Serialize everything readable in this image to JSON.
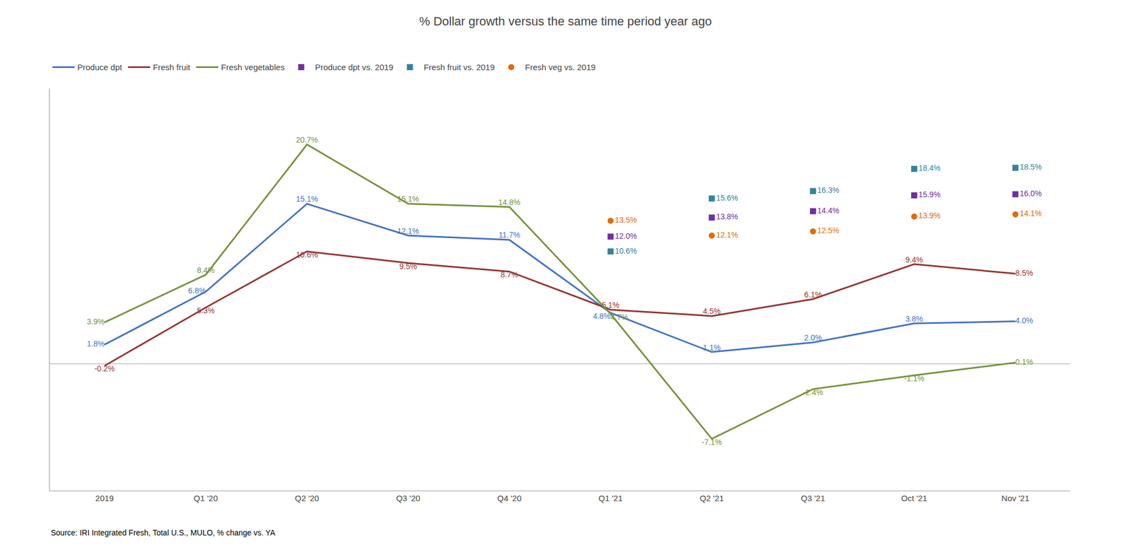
{
  "chart_data": {
    "type": "line",
    "title": "% Dollar growth versus the same time period year ago",
    "categories": [
      "2019",
      "Q1 '20",
      "Q2 '20",
      "Q3 '20",
      "Q4 '20",
      "Q1 '21",
      "Q2 '21",
      "Q3 '21",
      "Oct '21",
      "Nov '21"
    ],
    "series": [
      {
        "name": "Produce dpt",
        "type": "line",
        "color": "#4472c4",
        "values": [
          1.8,
          6.8,
          15.1,
          12.1,
          11.7,
          4.8,
          1.1,
          2.0,
          3.8,
          4.0
        ],
        "value_labels": [
          "1.8%",
          "6.8%",
          "15.1%",
          "12.1%",
          "11.7%",
          "4.8%",
          "1.1%",
          "2.0%",
          "3.8%",
          "4.0%"
        ]
      },
      {
        "name": "Fresh fruit",
        "type": "line",
        "color": "#943634",
        "values": [
          -0.2,
          5.3,
          10.6,
          9.5,
          8.7,
          5.1,
          4.5,
          6.1,
          9.4,
          8.5
        ],
        "value_labels": [
          "-0.2%",
          "5.3%",
          "10.6%",
          "9.5%",
          "8.7%",
          "5.1%",
          "4.5%",
          "6.1%",
          "9.4%",
          "8.5%"
        ]
      },
      {
        "name": "Fresh vegetables",
        "type": "line",
        "color": "#76923c",
        "values": [
          3.9,
          8.4,
          20.7,
          15.1,
          14.8,
          4.7,
          -7.1,
          -2.4,
          -1.1,
          0.1
        ],
        "value_labels": [
          "3.9%",
          "8.4%",
          "20.7%",
          "15.1%",
          "14.8%",
          "4.7%",
          "-7.1%",
          "-2.4%",
          "-1.1%",
          "0.1%"
        ]
      },
      {
        "name": "Produce dpt vs. 2019",
        "type": "scatter",
        "marker": "square",
        "color": "#7030a0",
        "values": [
          null,
          null,
          null,
          null,
          null,
          12.0,
          13.8,
          14.4,
          15.9,
          16.0
        ],
        "value_labels": [
          null,
          null,
          null,
          null,
          null,
          "12.0%",
          "13.8%",
          "14.4%",
          "15.9%",
          "16.0%"
        ]
      },
      {
        "name": "Fresh fruit vs. 2019",
        "type": "scatter",
        "marker": "square",
        "color": "#31849b",
        "values": [
          null,
          null,
          null,
          null,
          null,
          10.6,
          15.6,
          16.3,
          18.4,
          18.5
        ],
        "value_labels": [
          null,
          null,
          null,
          null,
          null,
          "10.6%",
          "15.6%",
          "16.3%",
          "18.4%",
          "18.5%"
        ]
      },
      {
        "name": "Fresh veg vs. 2019",
        "type": "scatter",
        "marker": "circle",
        "color": "#e26b0a",
        "values": [
          null,
          null,
          null,
          null,
          null,
          13.5,
          12.1,
          12.5,
          13.9,
          14.1
        ],
        "value_labels": [
          null,
          null,
          null,
          null,
          null,
          "13.5%",
          "12.1%",
          "12.5%",
          "13.9%",
          "14.1%"
        ]
      }
    ],
    "ylim": [
      -12,
      26
    ],
    "yticks": [],
    "grid": false,
    "tick_labels": "x",
    "data_labels": true,
    "legend": "top",
    "annotations": [
      "Source: IRI Integrated Fresh, Total U.S., MULO, % change vs. YA"
    ]
  }
}
